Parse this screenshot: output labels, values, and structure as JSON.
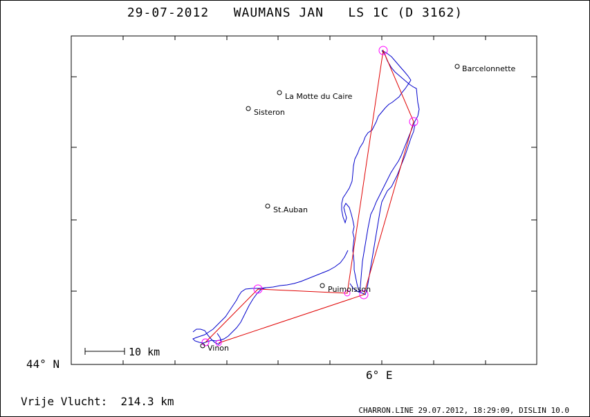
{
  "title": "29-07-2012   WAUMANS JAN   LS 1C (D 3162)",
  "axis": {
    "lat_label": "44° N",
    "lon_label": "6° E"
  },
  "scale_bar": {
    "label": "10 km"
  },
  "places": [
    {
      "name": "Barcelonnette"
    },
    {
      "name": "La Motte du Caire"
    },
    {
      "name": "Sisteron"
    },
    {
      "name": "St.Auban"
    },
    {
      "name": "Puimoisson"
    },
    {
      "name": "Vinon"
    }
  ],
  "footer": {
    "distance": "Vrije Vlucht:  214.3 km",
    "software": "CHARRON.LINE 29.07.2012, 18:29:09, DISLIN 10.0"
  },
  "colors": {
    "track": "#0000cc",
    "task": "#e00000",
    "turnpoint": "#ff00ff"
  }
}
